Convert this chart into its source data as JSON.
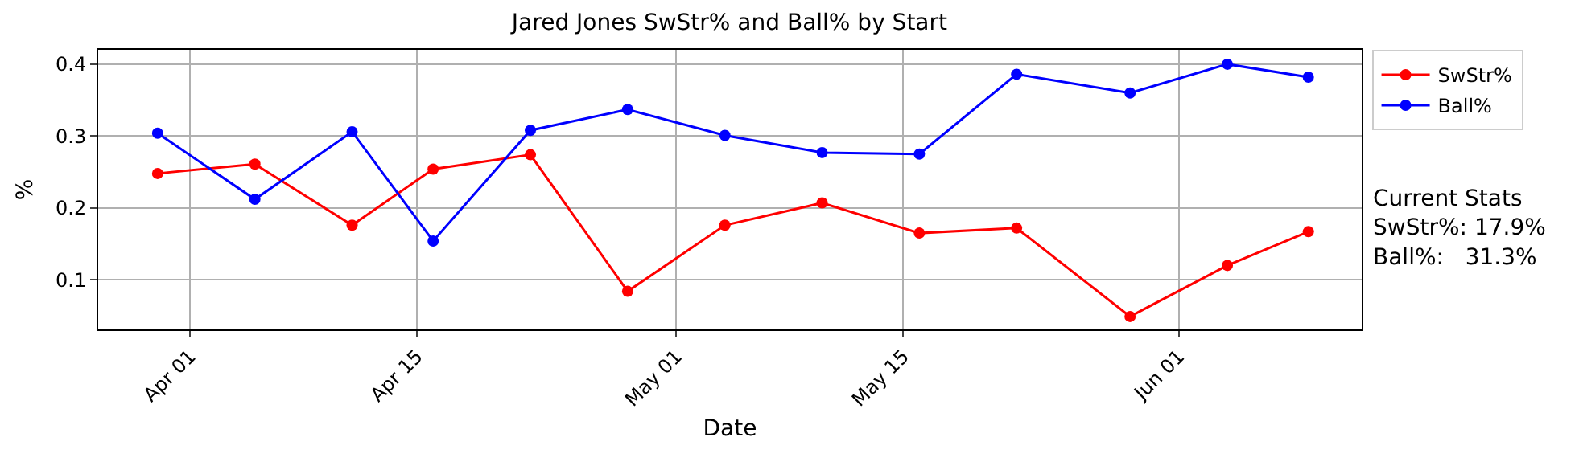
{
  "chart_data": {
    "type": "line",
    "title": "Jared Jones SwStr% and Ball% by Start",
    "xlabel": "Date",
    "ylabel": "%",
    "x": [
      "--03-30",
      "--04-05",
      "--04-11",
      "--04-16",
      "--04-22",
      "--04-28",
      "--05-04",
      "--05-10",
      "--05-16",
      "--05-22",
      "--05-29",
      "--06-04",
      "--06-09"
    ],
    "series": [
      {
        "name": "SwStr%",
        "color": "#ff0000",
        "values": [
          0.248,
          0.261,
          0.176,
          0.254,
          0.274,
          0.084,
          0.176,
          0.207,
          0.165,
          0.172,
          0.049,
          0.12,
          0.167
        ]
      },
      {
        "name": "Ball%",
        "color": "#0000ff",
        "values": [
          0.304,
          0.212,
          0.306,
          0.154,
          0.308,
          0.337,
          0.301,
          0.277,
          0.275,
          0.386,
          0.36,
          0.4,
          0.382
        ]
      }
    ],
    "xlim": [
      "--03-26T08:00",
      "--06-12T07:00"
    ],
    "xticks": [
      {
        "value": "--04-01",
        "label": "Apr 01"
      },
      {
        "value": "--04-15",
        "label": "Apr 15"
      },
      {
        "value": "--05-01",
        "label": "May 01"
      },
      {
        "value": "--05-15",
        "label": "May 15"
      },
      {
        "value": "--06-01",
        "label": "Jun 01"
      }
    ],
    "ylim": [
      0.031,
      0.42
    ],
    "yticks": [
      0.1,
      0.2,
      0.3,
      0.4
    ],
    "grid": true,
    "legend": "top right",
    "marker": "circle",
    "line_style": "solid",
    "annotations": [
      "Current Stats\nSwStr%: 17.9%\nBall%:   31.3%"
    ]
  }
}
